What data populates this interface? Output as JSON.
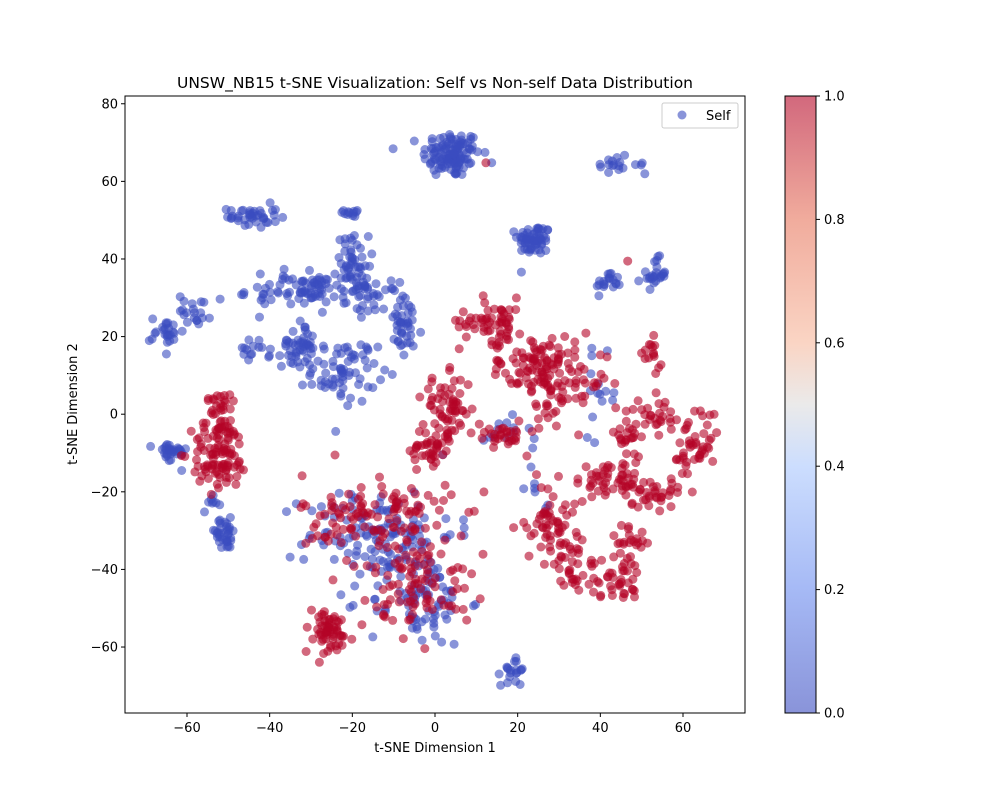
{
  "chart_data": {
    "type": "scatter",
    "title": "UNSW_NB15 t-SNE Visualization: Self vs Non-self Data Distribution",
    "xlabel": "t-SNE Dimension 1",
    "ylabel": "t-SNE Dimension 2",
    "xlim": [
      -75,
      75
    ],
    "ylim": [
      -77,
      82
    ],
    "x_ticks": [
      -60,
      -40,
      -20,
      0,
      20,
      40,
      60
    ],
    "y_ticks": [
      -60,
      -40,
      -20,
      0,
      20,
      40,
      60,
      80
    ],
    "grid": false,
    "legend": {
      "placement": "top-right",
      "entries": [
        "Self"
      ]
    },
    "colorbar": {
      "min": 0.0,
      "max": 1.0,
      "ticks": [
        0.0,
        0.2,
        0.4,
        0.6,
        0.8,
        1.0
      ],
      "colormap": "coolwarm"
    },
    "colors": {
      "self": "#3b4cc0",
      "non_self": "#b40426"
    },
    "clusters": [
      {
        "label": 0,
        "cx": 4,
        "cy": 67,
        "sx": 3.5,
        "sy": 3,
        "n": 120
      },
      {
        "label": 0,
        "cx": 43,
        "cy": 64,
        "sx": 2,
        "sy": 2,
        "n": 14
      },
      {
        "label": 0,
        "cx": 50,
        "cy": 64,
        "sx": 1.5,
        "sy": 1.5,
        "n": 4
      },
      {
        "label": 0,
        "cx": 24,
        "cy": 45,
        "sx": 2,
        "sy": 2,
        "n": 60
      },
      {
        "label": 0,
        "cx": 42,
        "cy": 34,
        "sx": 1.5,
        "sy": 1.5,
        "n": 20
      },
      {
        "label": 0,
        "cx": 53,
        "cy": 36,
        "sx": 1.5,
        "sy": 2,
        "n": 25
      },
      {
        "label": 0,
        "cx": -44,
        "cy": 51,
        "sx": 3,
        "sy": 1.5,
        "n": 40
      },
      {
        "label": 0,
        "cx": -20,
        "cy": 52,
        "sx": 1,
        "sy": 1,
        "n": 12
      },
      {
        "label": 0,
        "cx": -20,
        "cy": 38,
        "sx": 2,
        "sy": 4,
        "n": 60
      },
      {
        "label": 0,
        "cx": -30,
        "cy": 32,
        "sx": 3,
        "sy": 2,
        "n": 50
      },
      {
        "label": 0,
        "cx": -40,
        "cy": 32,
        "sx": 3,
        "sy": 3,
        "n": 25
      },
      {
        "label": 0,
        "cx": -15,
        "cy": 30,
        "sx": 3,
        "sy": 2,
        "n": 30
      },
      {
        "label": 0,
        "cx": -7,
        "cy": 22,
        "sx": 2,
        "sy": 4,
        "n": 40
      },
      {
        "label": 0,
        "cx": -65,
        "cy": 21,
        "sx": 2,
        "sy": 2,
        "n": 25
      },
      {
        "label": 0,
        "cx": -58,
        "cy": 27,
        "sx": 2,
        "sy": 2,
        "n": 20
      },
      {
        "label": 0,
        "cx": -44,
        "cy": 16,
        "sx": 2,
        "sy": 1.5,
        "n": 15
      },
      {
        "label": 0,
        "cx": -33,
        "cy": 18,
        "sx": 2,
        "sy": 3,
        "n": 45
      },
      {
        "label": 0,
        "cx": -22,
        "cy": 11,
        "sx": 4,
        "sy": 4,
        "n": 70
      },
      {
        "label": 0,
        "cx": -64,
        "cy": -10,
        "sx": 2,
        "sy": 1.5,
        "n": 30
      },
      {
        "label": 0,
        "cx": -51,
        "cy": -31,
        "sx": 2,
        "sy": 2,
        "n": 35
      },
      {
        "label": 0,
        "cx": -54,
        "cy": -22,
        "sx": 1,
        "sy": 1.5,
        "n": 8
      },
      {
        "label": 0,
        "cx": 19,
        "cy": -66,
        "sx": 1.5,
        "sy": 2,
        "n": 20
      },
      {
        "label": 0,
        "cx": 40,
        "cy": 5,
        "sx": 2,
        "sy": 5,
        "n": 15
      },
      {
        "label": 0,
        "cx": 15,
        "cy": -5,
        "sx": 4,
        "sy": 2,
        "n": 12
      },
      {
        "label": 0,
        "cx": -13,
        "cy": -31,
        "sx": 9,
        "sy": 6,
        "n": 130
      },
      {
        "label": 0,
        "cx": -4,
        "cy": -48,
        "sx": 6,
        "sy": 6,
        "n": 80
      },
      {
        "label": 0,
        "cx": 26,
        "cy": -17,
        "sx": 2,
        "sy": 4,
        "n": 8
      },
      {
        "label": 1,
        "cx": -52,
        "cy": -10,
        "sx": 3.5,
        "sy": 5,
        "n": 110
      },
      {
        "label": 1,
        "cx": -52,
        "cy": 3,
        "sx": 2,
        "sy": 1.5,
        "n": 20
      },
      {
        "label": 1,
        "cx": 14,
        "cy": 24,
        "sx": 4,
        "sy": 3,
        "n": 60
      },
      {
        "label": 1,
        "cx": 24,
        "cy": 14,
        "sx": 5,
        "sy": 3,
        "n": 60
      },
      {
        "label": 1,
        "cx": 30,
        "cy": 8,
        "sx": 6,
        "sy": 5,
        "n": 90
      },
      {
        "label": 1,
        "cx": 3,
        "cy": 2,
        "sx": 3,
        "sy": 4,
        "n": 60
      },
      {
        "label": 1,
        "cx": -1,
        "cy": -9,
        "sx": 2.5,
        "sy": 3,
        "n": 40
      },
      {
        "label": 1,
        "cx": 16,
        "cy": -5,
        "sx": 3,
        "sy": 2,
        "n": 30
      },
      {
        "label": 1,
        "cx": 52,
        "cy": 15,
        "sx": 1.5,
        "sy": 2,
        "n": 15
      },
      {
        "label": 1,
        "cx": 55,
        "cy": 0,
        "sx": 4,
        "sy": 2.5,
        "n": 35
      },
      {
        "label": 1,
        "cx": 63,
        "cy": -10,
        "sx": 3,
        "sy": 4,
        "n": 40
      },
      {
        "label": 1,
        "cx": 47,
        "cy": -6,
        "sx": 1.5,
        "sy": 3,
        "n": 20
      },
      {
        "label": 1,
        "cx": 42,
        "cy": -17,
        "sx": 4,
        "sy": 2.5,
        "n": 45
      },
      {
        "label": 1,
        "cx": 52,
        "cy": -20,
        "sx": 4,
        "sy": 2,
        "n": 40
      },
      {
        "label": 1,
        "cx": 28,
        "cy": -28,
        "sx": 3,
        "sy": 5,
        "n": 60
      },
      {
        "label": 1,
        "cx": 34,
        "cy": -40,
        "sx": 2.5,
        "sy": 4,
        "n": 30
      },
      {
        "label": 1,
        "cx": 44,
        "cy": -42,
        "sx": 3,
        "sy": 3,
        "n": 40
      },
      {
        "label": 1,
        "cx": 47,
        "cy": -32,
        "sx": 2,
        "sy": 2,
        "n": 20
      },
      {
        "label": 1,
        "cx": -14,
        "cy": -27,
        "sx": 9,
        "sy": 6,
        "n": 120
      },
      {
        "label": 1,
        "cx": -3,
        "cy": -43,
        "sx": 6,
        "sy": 6,
        "n": 90
      },
      {
        "label": 1,
        "cx": -26,
        "cy": -56,
        "sx": 3,
        "sy": 3,
        "n": 60
      },
      {
        "label": 1,
        "cx": 12,
        "cy": 64,
        "sx": 0.5,
        "sy": 0.5,
        "n": 1
      },
      {
        "label": 1,
        "cx": 46,
        "cy": 40,
        "sx": 0.5,
        "sy": 0.5,
        "n": 1
      }
    ]
  }
}
